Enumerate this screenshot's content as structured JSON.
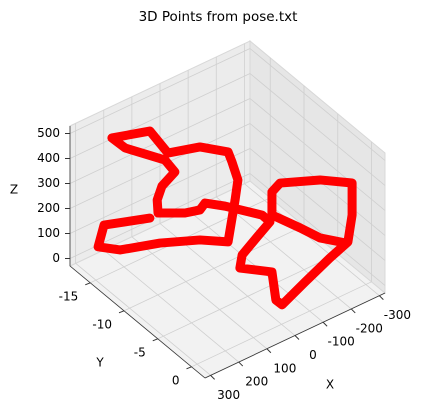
{
  "chart_data": {
    "type": "scatter3d",
    "title": "3D Points from pose.txt",
    "xlabel": "X",
    "ylabel": "Y",
    "zlabel": "Z",
    "color": "#ff0000",
    "grid": true,
    "xlim": [
      -320,
      320
    ],
    "ylim": [
      -18,
      2
    ],
    "zlim": [
      -30,
      530
    ],
    "xticks": [
      -300,
      -200,
      -100,
      0,
      100,
      200,
      300
    ],
    "yticks": [
      -15,
      -10,
      -5,
      0
    ],
    "zticks": [
      0,
      100,
      200,
      300,
      400,
      500
    ],
    "x": [
      228,
      271,
      292,
      214,
      192,
      50,
      -50,
      -75,
      -85,
      -64,
      -50,
      50,
      -28,
      36,
      171,
      124,
      -18,
      -53,
      -7,
      82,
      79,
      103,
      50,
      32,
      -39,
      -171,
      -199,
      -12,
      44,
      52,
      -62,
      68,
      46,
      -36,
      -124,
      -188,
      -203,
      -203,
      -233,
      -91,
      -62,
      -62,
      -162,
      -233,
      -178
    ],
    "y": [
      -10,
      -15,
      -15,
      -15,
      -10,
      -10,
      -10,
      -10,
      -10,
      -10,
      -10,
      -10,
      -18,
      -18,
      -18,
      -18,
      -18,
      -18,
      -18,
      -15,
      -15,
      -10,
      -10,
      -10,
      -10,
      -10,
      -10,
      -4,
      -4,
      -4,
      -4,
      2,
      2,
      2,
      2,
      2,
      2,
      2,
      -4,
      -4,
      -4,
      -4,
      -4,
      -4,
      2
    ],
    "z": [
      292,
      175,
      99,
      45,
      173,
      110,
      49,
      204,
      278,
      361,
      409,
      482,
      237,
      359,
      403,
      338,
      214,
      148,
      116,
      175,
      121,
      246,
      230,
      248,
      198,
      92,
      50,
      227,
      181,
      133,
      57,
      148,
      117,
      165,
      214,
      244,
      344,
      472,
      334,
      397,
      377,
      285,
      180,
      102,
      246
    ]
  }
}
